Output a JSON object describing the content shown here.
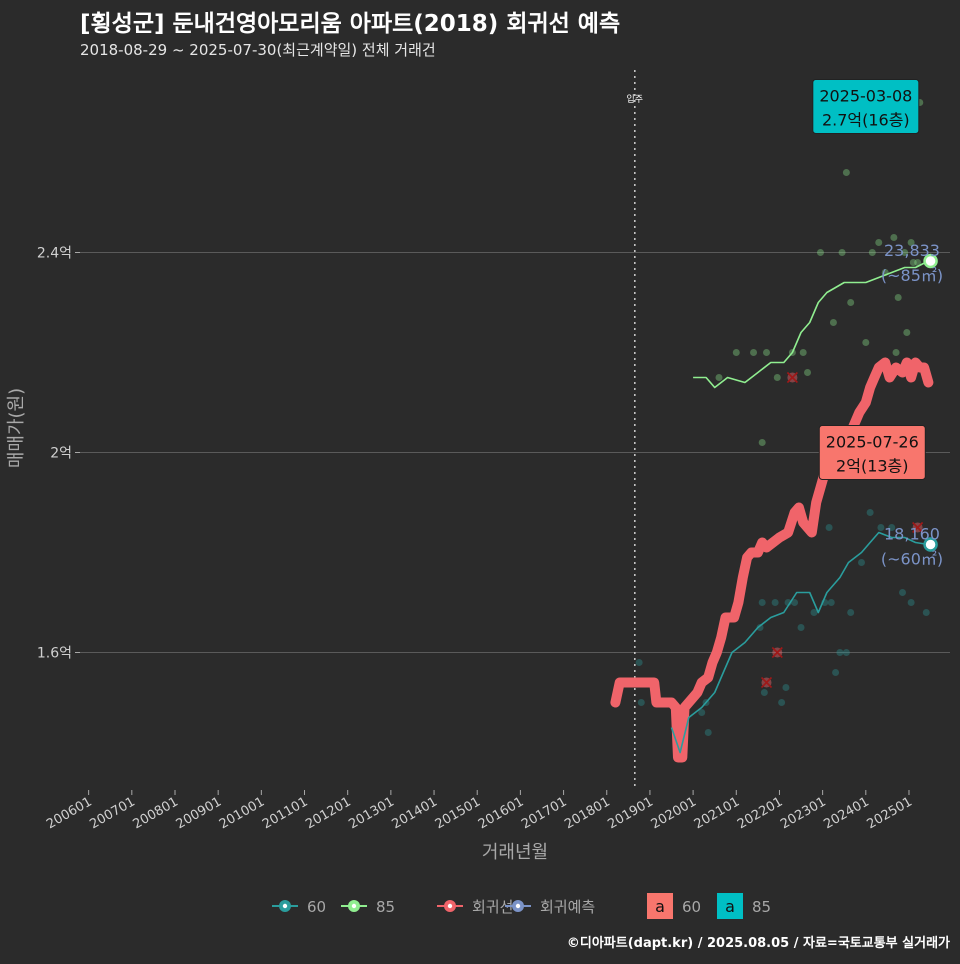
{
  "header": {
    "title": "[횡성군] 둔내건영아모리움 아파트(2018) 회귀선 예측",
    "subtitle": "2018-08-29 ~ 2025-07-30(최근계약일) 전체 거래건"
  },
  "footer": {
    "credit": "©디아파트(dapt.kr) / 2025.08.05 / 자료=국토교통부 실거래가"
  },
  "colors": {
    "background": "#2b2b2b",
    "grid": "#5a5a5a",
    "s60": "#2a9d9d",
    "s85": "#90ee90",
    "regression": "#f0646a",
    "forecast": "#7b93c7",
    "label60": "#f8766d",
    "label85": "#00bfc4",
    "text": "#ffffff",
    "muted": "#a8a8a8"
  },
  "chart_data": {
    "type": "line",
    "title": "[횡성군] 둔내건영아모리움 아파트(2018) 회귀선 예측",
    "xlabel": "거래년월",
    "ylabel": "매매가(원)",
    "xlim": [
      2005.8,
      2025.95
    ],
    "ylim": [
      1.325,
      2.775
    ],
    "grid": true,
    "y_ticks": [
      {
        "value": 1.6,
        "label": "1.6억"
      },
      {
        "value": 2.0,
        "label": "2억"
      },
      {
        "value": 2.4,
        "label": "2.4억"
      }
    ],
    "x_ticks": [
      {
        "value": 2006.0,
        "label": "200601"
      },
      {
        "value": 2007.0,
        "label": "200701"
      },
      {
        "value": 2008.0,
        "label": "200801"
      },
      {
        "value": 2009.0,
        "label": "200901"
      },
      {
        "value": 2010.0,
        "label": "201001"
      },
      {
        "value": 2011.0,
        "label": "201101"
      },
      {
        "value": 2012.0,
        "label": "201201"
      },
      {
        "value": 2013.0,
        "label": "201301"
      },
      {
        "value": 2014.0,
        "label": "201401"
      },
      {
        "value": 2015.0,
        "label": "201501"
      },
      {
        "value": 2016.0,
        "label": "201601"
      },
      {
        "value": 2017.0,
        "label": "201701"
      },
      {
        "value": 2018.0,
        "label": "201801"
      },
      {
        "value": 2019.0,
        "label": "201901"
      },
      {
        "value": 2020.0,
        "label": "202001"
      },
      {
        "value": 2021.0,
        "label": "202101"
      },
      {
        "value": 2022.0,
        "label": "202201"
      },
      {
        "value": 2023.0,
        "label": "202301"
      },
      {
        "value": 2024.0,
        "label": "202401"
      },
      {
        "value": 2025.0,
        "label": "202501"
      }
    ],
    "vline": {
      "x": 2018.65,
      "label": "입주"
    },
    "series": [
      {
        "name": "60",
        "kind": "avg-line",
        "points": [
          [
            2019.5,
            1.45
          ],
          [
            2019.7,
            1.4
          ],
          [
            2019.9,
            1.47
          ],
          [
            2020.2,
            1.49
          ],
          [
            2020.5,
            1.52
          ],
          [
            2020.7,
            1.56
          ],
          [
            2020.9,
            1.6
          ],
          [
            2021.2,
            1.62
          ],
          [
            2021.5,
            1.65
          ],
          [
            2021.8,
            1.67
          ],
          [
            2022.1,
            1.68
          ],
          [
            2022.4,
            1.72
          ],
          [
            2022.7,
            1.72
          ],
          [
            2022.9,
            1.68
          ],
          [
            2023.1,
            1.72
          ],
          [
            2023.4,
            1.75
          ],
          [
            2023.6,
            1.78
          ],
          [
            2023.9,
            1.8
          ],
          [
            2024.1,
            1.82
          ],
          [
            2024.3,
            1.84
          ],
          [
            2024.6,
            1.83
          ],
          [
            2024.9,
            1.83
          ],
          [
            2025.15,
            1.82
          ],
          [
            2025.45,
            1.816
          ]
        ]
      },
      {
        "name": "85",
        "kind": "avg-line",
        "points": [
          [
            2020.0,
            2.15
          ],
          [
            2020.3,
            2.15
          ],
          [
            2020.5,
            2.13
          ],
          [
            2020.8,
            2.15
          ],
          [
            2021.2,
            2.14
          ],
          [
            2021.5,
            2.16
          ],
          [
            2021.8,
            2.18
          ],
          [
            2022.1,
            2.18
          ],
          [
            2022.3,
            2.2
          ],
          [
            2022.5,
            2.24
          ],
          [
            2022.7,
            2.26
          ],
          [
            2022.9,
            2.3
          ],
          [
            2023.1,
            2.32
          ],
          [
            2023.3,
            2.33
          ],
          [
            2023.5,
            2.34
          ],
          [
            2023.8,
            2.34
          ],
          [
            2024.0,
            2.34
          ],
          [
            2024.3,
            2.35
          ],
          [
            2024.6,
            2.36
          ],
          [
            2024.9,
            2.37
          ],
          [
            2025.15,
            2.37
          ],
          [
            2025.45,
            2.383
          ]
        ]
      },
      {
        "name": "회귀선",
        "kind": "regression",
        "points": [
          [
            2018.2,
            1.5
          ],
          [
            2018.3,
            1.54
          ],
          [
            2018.6,
            1.54
          ],
          [
            2018.9,
            1.54
          ],
          [
            2019.1,
            1.54
          ],
          [
            2019.15,
            1.5
          ],
          [
            2019.5,
            1.5
          ],
          [
            2019.6,
            1.49
          ],
          [
            2019.65,
            1.39
          ],
          [
            2019.75,
            1.39
          ],
          [
            2019.8,
            1.49
          ],
          [
            2019.9,
            1.5
          ],
          [
            2020.0,
            1.51
          ],
          [
            2020.1,
            1.52
          ],
          [
            2020.2,
            1.54
          ],
          [
            2020.35,
            1.55
          ],
          [
            2020.45,
            1.58
          ],
          [
            2020.55,
            1.6
          ],
          [
            2020.65,
            1.63
          ],
          [
            2020.75,
            1.67
          ],
          [
            2020.95,
            1.67
          ],
          [
            2021.05,
            1.7
          ],
          [
            2021.15,
            1.75
          ],
          [
            2021.25,
            1.79
          ],
          [
            2021.35,
            1.8
          ],
          [
            2021.5,
            1.8
          ],
          [
            2021.6,
            1.82
          ],
          [
            2021.7,
            1.81
          ],
          [
            2021.85,
            1.82
          ],
          [
            2022.0,
            1.83
          ],
          [
            2022.2,
            1.84
          ],
          [
            2022.35,
            1.88
          ],
          [
            2022.45,
            1.89
          ],
          [
            2022.55,
            1.86
          ],
          [
            2022.75,
            1.84
          ],
          [
            2022.85,
            1.9
          ],
          [
            2022.95,
            1.93
          ],
          [
            2023.05,
            1.96
          ],
          [
            2023.2,
            1.98
          ],
          [
            2023.35,
            2.0
          ],
          [
            2023.5,
            2.02
          ],
          [
            2023.7,
            2.05
          ],
          [
            2023.85,
            2.08
          ],
          [
            2024.0,
            2.1
          ],
          [
            2024.1,
            2.13
          ],
          [
            2024.2,
            2.15
          ],
          [
            2024.3,
            2.17
          ],
          [
            2024.45,
            2.18
          ],
          [
            2024.55,
            2.15
          ],
          [
            2024.7,
            2.17
          ],
          [
            2024.85,
            2.16
          ],
          [
            2024.95,
            2.18
          ],
          [
            2025.05,
            2.15
          ],
          [
            2025.15,
            2.18
          ],
          [
            2025.25,
            2.17
          ],
          [
            2025.35,
            2.17
          ],
          [
            2025.45,
            2.14
          ]
        ]
      }
    ],
    "scatter_60": [
      [
        2018.75,
        1.58
      ],
      [
        2018.8,
        1.5
      ],
      [
        2019.7,
        1.4
      ],
      [
        2019.75,
        1.41
      ],
      [
        2020.2,
        1.48
      ],
      [
        2020.3,
        1.5
      ],
      [
        2020.35,
        1.44
      ],
      [
        2021.55,
        1.65
      ],
      [
        2021.6,
        1.7
      ],
      [
        2021.65,
        1.52
      ],
      [
        2021.9,
        1.7
      ],
      [
        2022.05,
        1.5
      ],
      [
        2022.15,
        1.53
      ],
      [
        2022.2,
        1.7
      ],
      [
        2022.35,
        1.7
      ],
      [
        2022.5,
        1.65
      ],
      [
        2022.8,
        1.68
      ],
      [
        2023.05,
        1.7
      ],
      [
        2023.15,
        1.85
      ],
      [
        2023.2,
        1.7
      ],
      [
        2023.3,
        1.56
      ],
      [
        2023.4,
        1.6
      ],
      [
        2023.55,
        1.6
      ],
      [
        2023.65,
        1.68
      ],
      [
        2023.9,
        1.78
      ],
      [
        2024.1,
        1.88
      ],
      [
        2024.35,
        1.85
      ],
      [
        2024.6,
        1.85
      ],
      [
        2024.85,
        1.72
      ],
      [
        2025.05,
        1.7
      ],
      [
        2025.4,
        1.68
      ]
    ],
    "scatter_85": [
      [
        2020.6,
        2.15
      ],
      [
        2021.0,
        2.2
      ],
      [
        2021.4,
        2.2
      ],
      [
        2021.6,
        2.02
      ],
      [
        2021.7,
        2.2
      ],
      [
        2021.95,
        2.15
      ],
      [
        2022.3,
        2.2
      ],
      [
        2022.55,
        2.2
      ],
      [
        2022.65,
        2.16
      ],
      [
        2022.95,
        2.4
      ],
      [
        2023.25,
        2.26
      ],
      [
        2023.45,
        2.4
      ],
      [
        2023.55,
        2.56
      ],
      [
        2023.65,
        2.3
      ],
      [
        2024.0,
        2.22
      ],
      [
        2024.15,
        2.4
      ],
      [
        2024.3,
        2.42
      ],
      [
        2024.45,
        2.36
      ],
      [
        2024.65,
        2.43
      ],
      [
        2024.7,
        2.2
      ],
      [
        2024.75,
        2.31
      ],
      [
        2024.9,
        2.4
      ],
      [
        2024.95,
        2.24
      ],
      [
        2025.05,
        2.42
      ],
      [
        2025.1,
        2.38
      ],
      [
        2025.2,
        2.38
      ],
      [
        2025.25,
        2.7
      ]
    ],
    "regression_marks": [
      [
        2021.7,
        1.54
      ],
      [
        2021.95,
        1.6
      ],
      [
        2022.3,
        2.15
      ],
      [
        2025.2,
        1.85
      ]
    ],
    "end_points": [
      {
        "name": "85",
        "x": 2025.5,
        "y": 2.383,
        "value": "23,833",
        "area": "(~85㎡)"
      },
      {
        "name": "60",
        "x": 2025.5,
        "y": 1.816,
        "value": "18,160",
        "area": "(~60㎡)"
      }
    ],
    "callouts": [
      {
        "series": "85",
        "x": 2024.0,
        "y": 2.692,
        "date": "2025-03-08",
        "price": "2.7억(16층)"
      },
      {
        "series": "60",
        "x": 2024.15,
        "y": 2.0,
        "date": "2025-07-26",
        "price": "2억(13층)"
      }
    ],
    "legend": {
      "position": "bottom",
      "items": [
        "60",
        "85",
        "회귀선",
        "회귀예측"
      ],
      "label_keys": [
        "60",
        "85"
      ],
      "label_glyph": "a"
    }
  }
}
